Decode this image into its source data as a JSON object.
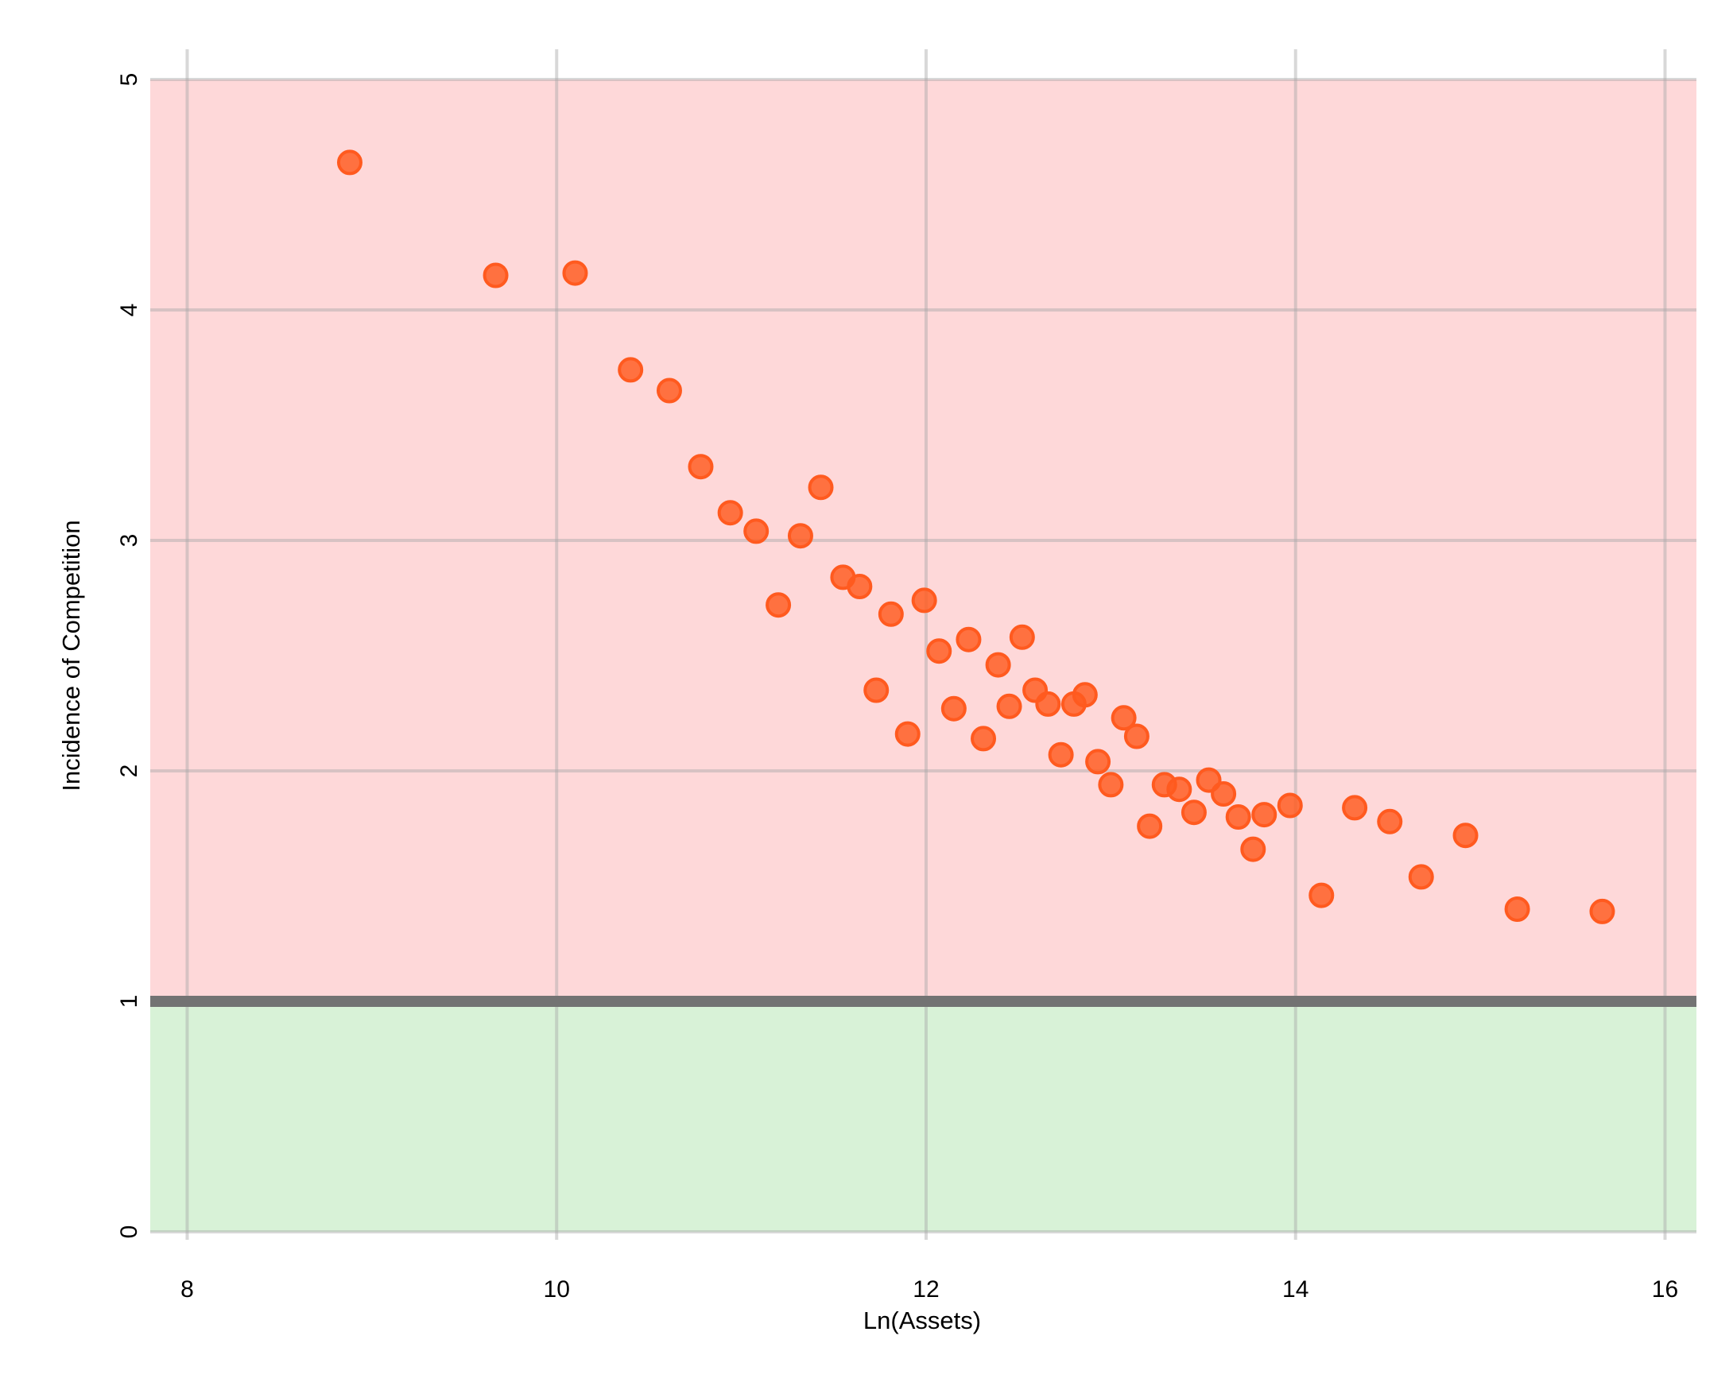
{
  "chart_data": {
    "type": "scatter",
    "title": "",
    "xlabel": "Ln(Assets)",
    "ylabel": "Incidence of Competition",
    "xlim": [
      7.8,
      16.17
    ],
    "ylim": [
      0,
      5
    ],
    "xticks": [
      8,
      10,
      12,
      14,
      16
    ],
    "yticks": [
      0,
      1,
      2,
      3,
      4,
      5
    ],
    "grid": true,
    "reference_line": {
      "y": 1,
      "color": "#737373"
    },
    "bands": [
      {
        "from": 1,
        "to": 5,
        "color": "#fed8d9"
      },
      {
        "from": 0,
        "to": 1,
        "color": "#d8f2d7"
      }
    ],
    "marker_color": "#ff5a1f",
    "series": [
      {
        "points": [
          [
            8.88,
            4.64
          ],
          [
            9.67,
            4.15
          ],
          [
            10.1,
            4.16
          ],
          [
            10.4,
            3.74
          ],
          [
            10.61,
            3.65
          ],
          [
            10.78,
            3.32
          ],
          [
            10.94,
            3.12
          ],
          [
            11.08,
            3.04
          ],
          [
            11.2,
            2.72
          ],
          [
            11.32,
            3.02
          ],
          [
            11.43,
            3.23
          ],
          [
            11.55,
            2.84
          ],
          [
            11.64,
            2.8
          ],
          [
            11.73,
            2.35
          ],
          [
            11.81,
            2.68
          ],
          [
            11.9,
            2.16
          ],
          [
            11.99,
            2.74
          ],
          [
            12.07,
            2.52
          ],
          [
            12.15,
            2.27
          ],
          [
            12.23,
            2.57
          ],
          [
            12.31,
            2.14
          ],
          [
            12.39,
            2.46
          ],
          [
            12.45,
            2.28
          ],
          [
            12.52,
            2.58
          ],
          [
            12.59,
            2.35
          ],
          [
            12.66,
            2.29
          ],
          [
            12.73,
            2.07
          ],
          [
            12.8,
            2.29
          ],
          [
            12.86,
            2.33
          ],
          [
            12.93,
            2.04
          ],
          [
            13.0,
            1.94
          ],
          [
            13.07,
            2.23
          ],
          [
            13.14,
            2.15
          ],
          [
            13.21,
            1.76
          ],
          [
            13.29,
            1.94
          ],
          [
            13.37,
            1.92
          ],
          [
            13.45,
            1.82
          ],
          [
            13.53,
            1.96
          ],
          [
            13.61,
            1.9
          ],
          [
            13.69,
            1.8
          ],
          [
            13.77,
            1.66
          ],
          [
            13.83,
            1.81
          ],
          [
            13.97,
            1.85
          ],
          [
            14.14,
            1.46
          ],
          [
            14.32,
            1.84
          ],
          [
            14.51,
            1.78
          ],
          [
            14.68,
            1.54
          ],
          [
            14.92,
            1.72
          ],
          [
            15.2,
            1.4
          ],
          [
            15.66,
            1.39
          ]
        ]
      }
    ]
  }
}
